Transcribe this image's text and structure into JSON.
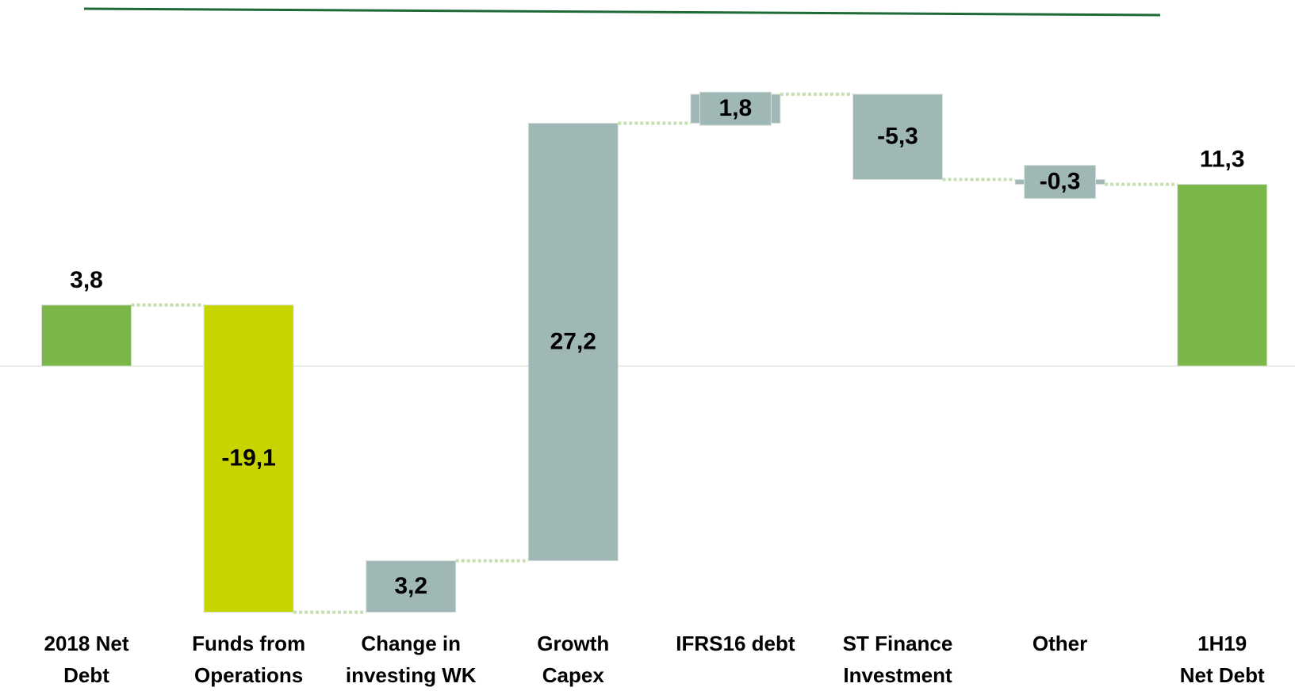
{
  "chart_data": {
    "type": "waterfall",
    "categories": [
      "2018 Net\nDebt",
      "Funds from\nOperations",
      "Change in\ninvesting WK",
      "Growth\nCapex",
      "IFRS16 debt",
      "ST Finance\nInvestment",
      "Other",
      "1H19\nNet Debt"
    ],
    "values": [
      3.8,
      -19.1,
      3.2,
      27.2,
      1.8,
      -5.3,
      -0.3,
      11.3
    ],
    "value_labels": [
      "3,8",
      "-19,1",
      "3,2",
      "27,2",
      "1,8",
      "-5,3",
      "-0,3",
      "11,3"
    ],
    "measure": [
      "absolute",
      "relative",
      "relative",
      "relative",
      "relative",
      "relative",
      "relative",
      "total"
    ],
    "colors": [
      "#7ab648",
      "#c8d400",
      "#9fb8b5",
      "#9fb8b5",
      "#9fb8b5",
      "#9fb8b5",
      "#9fb8b5",
      "#7ab648"
    ]
  }
}
